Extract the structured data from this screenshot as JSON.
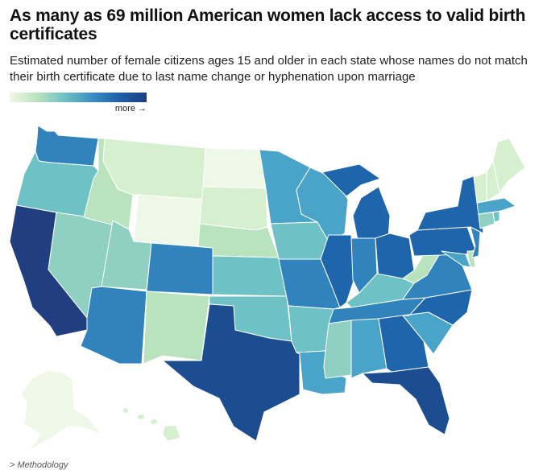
{
  "title": "As many as 69 million American women lack access to valid birth certificates",
  "subtitle": "Estimated number of female citizens ages 15 and older in each state whose names do not match their birth certificate due to last name change or hyphenation upon marriage",
  "legend": {
    "more_label": "more →"
  },
  "methodology_label": "> Methodology",
  "colors": {
    "l1": "#eef8e6",
    "l2": "#d6f0cf",
    "l3": "#b9e3bd",
    "l4": "#8fd0c3",
    "l5": "#6ec1c4",
    "l6": "#4aa4c9",
    "l7": "#3183bd",
    "l8": "#1f65ab",
    "l9": "#1c4d91",
    "l10": "#213f80"
  },
  "states": [
    {
      "name": "Washington",
      "level": 7
    },
    {
      "name": "Oregon",
      "level": 5
    },
    {
      "name": "California",
      "level": 10
    },
    {
      "name": "Nevada",
      "level": 4
    },
    {
      "name": "Idaho",
      "level": 3
    },
    {
      "name": "Montana",
      "level": 2
    },
    {
      "name": "Wyoming",
      "level": 1
    },
    {
      "name": "Utah",
      "level": 4
    },
    {
      "name": "Arizona",
      "level": 7
    },
    {
      "name": "Colorado",
      "level": 7
    },
    {
      "name": "New Mexico",
      "level": 3
    },
    {
      "name": "North Dakota",
      "level": 1
    },
    {
      "name": "South Dakota",
      "level": 2
    },
    {
      "name": "Nebraska",
      "level": 3
    },
    {
      "name": "Kansas",
      "level": 5
    },
    {
      "name": "Oklahoma",
      "level": 5
    },
    {
      "name": "Texas",
      "level": 9
    },
    {
      "name": "Minnesota",
      "level": 6
    },
    {
      "name": "Iowa",
      "level": 5
    },
    {
      "name": "Missouri",
      "level": 7
    },
    {
      "name": "Arkansas",
      "level": 5
    },
    {
      "name": "Louisiana",
      "level": 6
    },
    {
      "name": "Wisconsin",
      "level": 6
    },
    {
      "name": "Illinois",
      "level": 8
    },
    {
      "name": "Michigan",
      "level": 8
    },
    {
      "name": "Indiana",
      "level": 7
    },
    {
      "name": "Ohio",
      "level": 8
    },
    {
      "name": "Kentucky",
      "level": 5
    },
    {
      "name": "Tennessee",
      "level": 7
    },
    {
      "name": "Mississippi",
      "level": 4
    },
    {
      "name": "Alabama",
      "level": 6
    },
    {
      "name": "Georgia",
      "level": 8
    },
    {
      "name": "Florida",
      "level": 9
    },
    {
      "name": "South Carolina",
      "level": 6
    },
    {
      "name": "North Carolina",
      "level": 8
    },
    {
      "name": "Virginia",
      "level": 7
    },
    {
      "name": "West Virginia",
      "level": 3
    },
    {
      "name": "Maryland",
      "level": 6
    },
    {
      "name": "Delaware",
      "level": 3
    },
    {
      "name": "New Jersey",
      "level": 7
    },
    {
      "name": "Pennsylvania",
      "level": 8
    },
    {
      "name": "New York",
      "level": 8
    },
    {
      "name": "Connecticut",
      "level": 4
    },
    {
      "name": "Rhode Island",
      "level": 5
    },
    {
      "name": "Massachusetts",
      "level": 6
    },
    {
      "name": "Vermont",
      "level": 2
    },
    {
      "name": "New Hampshire",
      "level": 2
    },
    {
      "name": "Maine",
      "level": 2
    },
    {
      "name": "Alaska",
      "level": 1
    },
    {
      "name": "Hawaii",
      "level": 2
    }
  ]
}
